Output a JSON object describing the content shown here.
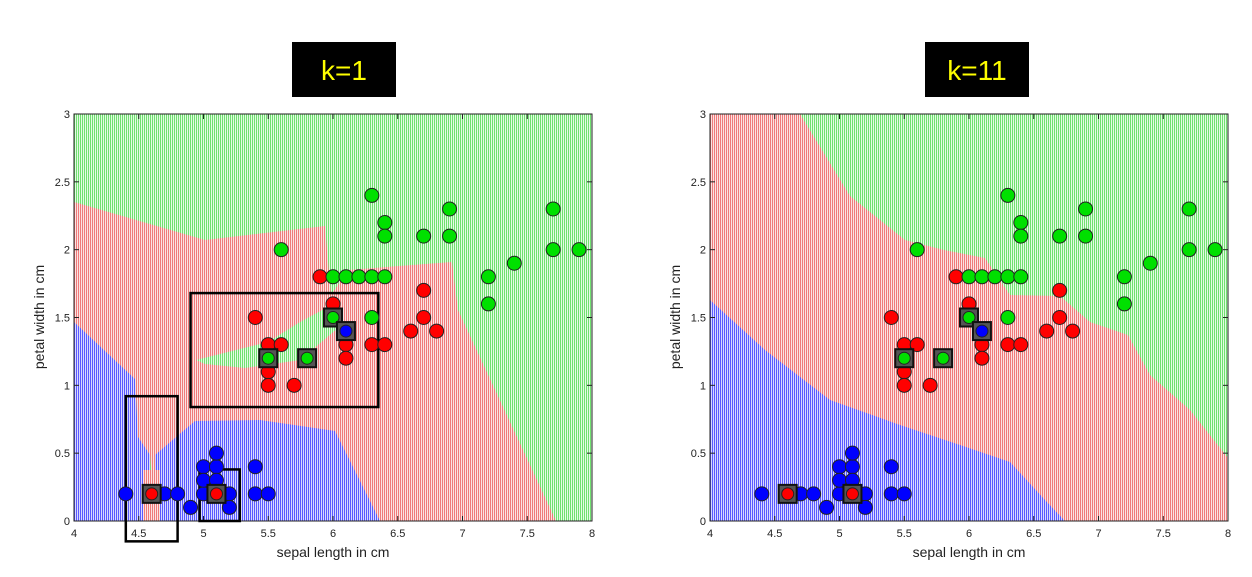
{
  "colors": {
    "setosa": "#0000ff",
    "versicolor": "#ff0000",
    "virginica": "#00e000",
    "region_setosa": "#a6a6ff",
    "region_versicolor": "#f2a0a0",
    "region_virginica": "#a6f0a6",
    "title_bg": "#000000",
    "title_text": "#ffff00"
  },
  "chart_data": [
    {
      "type": "scatter",
      "title": "k=1",
      "xlabel": "sepal length in cm",
      "ylabel": "petal width in cm",
      "xlim": [
        4,
        8
      ],
      "ylim": [
        0,
        3
      ],
      "xticks": [
        "4",
        "4.5",
        "5",
        "5.5",
        "6",
        "6.5",
        "7",
        "7.5",
        "8"
      ],
      "yticks": [
        "0",
        "0.5",
        "1",
        "1.5",
        "2",
        "2.5",
        "3"
      ],
      "background": "decision regions (setosa=blue, versicolor=red, virginica=green)",
      "series": [
        {
          "class": "setosa",
          "points": [
            [
              4.4,
              0.2
            ],
            [
              4.6,
              0.2
            ],
            [
              4.7,
              0.2
            ],
            [
              4.8,
              0.2
            ],
            [
              4.9,
              0.1
            ],
            [
              5.0,
              0.2
            ],
            [
              5.0,
              0.4
            ],
            [
              5.0,
              0.3
            ],
            [
              5.1,
              0.2
            ],
            [
              5.1,
              0.4
            ],
            [
              5.1,
              0.5
            ],
            [
              5.2,
              0.2
            ],
            [
              5.2,
              0.1
            ],
            [
              5.4,
              0.4
            ],
            [
              5.4,
              0.2
            ],
            [
              5.5,
              0.2
            ],
            [
              5.1,
              0.3
            ]
          ]
        },
        {
          "class": "versicolor",
          "points": [
            [
              5.4,
              1.5
            ],
            [
              5.5,
              1.3
            ],
            [
              5.5,
              1.1
            ],
            [
              5.5,
              1.0
            ],
            [
              5.6,
              1.3
            ],
            [
              5.7,
              1.0
            ],
            [
              5.9,
              1.8
            ],
            [
              6.0,
              1.6
            ],
            [
              6.0,
              1.5
            ],
            [
              6.1,
              1.3
            ],
            [
              6.1,
              1.2
            ],
            [
              6.3,
              1.3
            ],
            [
              6.4,
              1.3
            ],
            [
              6.6,
              1.4
            ],
            [
              6.7,
              1.7
            ],
            [
              6.7,
              1.5
            ],
            [
              6.8,
              1.4
            ]
          ]
        },
        {
          "class": "virginica",
          "points": [
            [
              5.6,
              2.0
            ],
            [
              6.0,
              1.8
            ],
            [
              6.1,
              1.8
            ],
            [
              6.2,
              1.8
            ],
            [
              6.3,
              1.8
            ],
            [
              6.4,
              1.8
            ],
            [
              6.3,
              2.4
            ],
            [
              6.3,
              1.5
            ],
            [
              6.4,
              2.2
            ],
            [
              6.4,
              2.1
            ],
            [
              6.7,
              2.1
            ],
            [
              6.9,
              2.3
            ],
            [
              6.9,
              2.1
            ],
            [
              7.2,
              1.8
            ],
            [
              7.2,
              1.6
            ],
            [
              7.4,
              1.9
            ],
            [
              7.7,
              2.3
            ],
            [
              7.7,
              2.0
            ],
            [
              7.9,
              2.0
            ]
          ]
        }
      ],
      "test_points": [
        {
          "x": 4.6,
          "y": 0.2,
          "class": "versicolor"
        },
        {
          "x": 5.1,
          "y": 0.2,
          "class": "versicolor"
        },
        {
          "x": 5.5,
          "y": 1.2,
          "class": "virginica"
        },
        {
          "x": 5.8,
          "y": 1.2,
          "class": "virginica"
        },
        {
          "x": 6.0,
          "y": 1.5,
          "class": "virginica"
        },
        {
          "x": 6.1,
          "y": 1.4,
          "class": "setosa"
        }
      ],
      "highlight_boxes": [
        {
          "x0": 4.4,
          "x1": 4.8,
          "y0": -0.15,
          "y1": 0.92
        },
        {
          "x0": 4.97,
          "x1": 5.28,
          "y0": 0.0,
          "y1": 0.38
        },
        {
          "x0": 4.9,
          "x1": 6.35,
          "y0": 0.84,
          "y1": 1.68
        }
      ]
    },
    {
      "type": "scatter",
      "title": "k=11",
      "xlabel": "sepal length in cm",
      "ylabel": "petal width in cm",
      "xlim": [
        4,
        8
      ],
      "ylim": [
        0,
        3
      ],
      "xticks": [
        "4",
        "4.5",
        "5",
        "5.5",
        "6",
        "6.5",
        "7",
        "7.5",
        "8"
      ],
      "yticks": [
        "0",
        "0.5",
        "1",
        "1.5",
        "2",
        "2.5",
        "3"
      ],
      "background": "decision regions (setosa=blue, versicolor=red, virginica=green)",
      "series": [
        {
          "class": "setosa",
          "points": [
            [
              4.4,
              0.2
            ],
            [
              4.6,
              0.2
            ],
            [
              4.7,
              0.2
            ],
            [
              4.8,
              0.2
            ],
            [
              4.9,
              0.1
            ],
            [
              5.0,
              0.2
            ],
            [
              5.0,
              0.4
            ],
            [
              5.0,
              0.3
            ],
            [
              5.1,
              0.2
            ],
            [
              5.1,
              0.4
            ],
            [
              5.1,
              0.5
            ],
            [
              5.2,
              0.2
            ],
            [
              5.2,
              0.1
            ],
            [
              5.4,
              0.4
            ],
            [
              5.4,
              0.2
            ],
            [
              5.5,
              0.2
            ],
            [
              5.1,
              0.3
            ]
          ]
        },
        {
          "class": "versicolor",
          "points": [
            [
              5.4,
              1.5
            ],
            [
              5.5,
              1.3
            ],
            [
              5.5,
              1.1
            ],
            [
              5.5,
              1.0
            ],
            [
              5.6,
              1.3
            ],
            [
              5.7,
              1.0
            ],
            [
              5.9,
              1.8
            ],
            [
              6.0,
              1.6
            ],
            [
              6.0,
              1.5
            ],
            [
              6.1,
              1.3
            ],
            [
              6.1,
              1.2
            ],
            [
              6.3,
              1.3
            ],
            [
              6.4,
              1.3
            ],
            [
              6.6,
              1.4
            ],
            [
              6.7,
              1.7
            ],
            [
              6.7,
              1.5
            ],
            [
              6.8,
              1.4
            ]
          ]
        },
        {
          "class": "virginica",
          "points": [
            [
              5.6,
              2.0
            ],
            [
              6.0,
              1.8
            ],
            [
              6.1,
              1.8
            ],
            [
              6.2,
              1.8
            ],
            [
              6.3,
              1.8
            ],
            [
              6.4,
              1.8
            ],
            [
              6.3,
              2.4
            ],
            [
              6.3,
              1.5
            ],
            [
              6.4,
              2.2
            ],
            [
              6.4,
              2.1
            ],
            [
              6.7,
              2.1
            ],
            [
              6.9,
              2.3
            ],
            [
              6.9,
              2.1
            ],
            [
              7.2,
              1.8
            ],
            [
              7.2,
              1.6
            ],
            [
              7.4,
              1.9
            ],
            [
              7.7,
              2.3
            ],
            [
              7.7,
              2.0
            ],
            [
              7.9,
              2.0
            ]
          ]
        }
      ],
      "test_points": [
        {
          "x": 4.6,
          "y": 0.2,
          "class": "versicolor"
        },
        {
          "x": 5.1,
          "y": 0.2,
          "class": "versicolor"
        },
        {
          "x": 5.5,
          "y": 1.2,
          "class": "virginica"
        },
        {
          "x": 5.8,
          "y": 1.2,
          "class": "virginica"
        },
        {
          "x": 6.0,
          "y": 1.5,
          "class": "virginica"
        },
        {
          "x": 6.1,
          "y": 1.4,
          "class": "setosa"
        }
      ],
      "highlight_boxes": []
    }
  ]
}
